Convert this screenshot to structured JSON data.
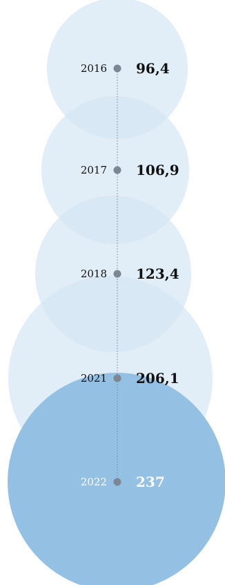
{
  "chart_data": {
    "type": "bubble",
    "categories": [
      "2016",
      "2017",
      "2018",
      "2021",
      "2022"
    ],
    "values": [
      96.4,
      106.9,
      123.4,
      206.1,
      237
    ],
    "value_labels": [
      "96,4",
      "106,9",
      "123,4",
      "206,1",
      "237"
    ],
    "title": "",
    "xlabel": "",
    "ylabel": ""
  },
  "colors": {
    "bubble_light": "#d6e6f4",
    "bubble_dark": "#93c0e3",
    "dot": "#7c8694",
    "connector": "#8a96a6",
    "text_dark": "#111111",
    "text_light": "#ffffff"
  }
}
